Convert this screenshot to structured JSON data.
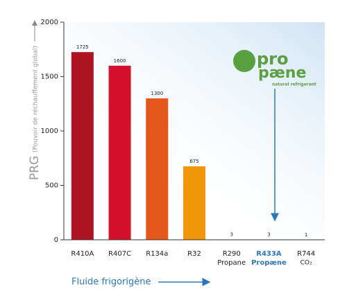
{
  "chart_data": {
    "type": "bar",
    "y_label_main": "PRG",
    "y_label_sub": "(Pouvoir de réchauffement global)",
    "x_label": "Fluide frigorigène",
    "categories": [
      [
        "R410A"
      ],
      [
        "R407C"
      ],
      [
        "R134a"
      ],
      [
        "R32"
      ],
      [
        "R290",
        "Propane"
      ],
      [
        "R433A",
        "Propæne"
      ],
      [
        "R744",
        "CO₂"
      ]
    ],
    "values": [
      1725,
      1600,
      1300,
      675,
      3,
      3,
      1
    ],
    "colors": [
      "#ae1322",
      "#d4112b",
      "#e4571b",
      "#ef960b",
      "#5a9e43",
      "#2b78be",
      "#5a9e43"
    ],
    "ylim": [
      0,
      2000
    ],
    "yticks": [
      0,
      500,
      1000,
      1500,
      2000
    ],
    "logo": {
      "part1": "pro",
      "part2": "pæne",
      "tagline": "natural refrigerant"
    }
  }
}
